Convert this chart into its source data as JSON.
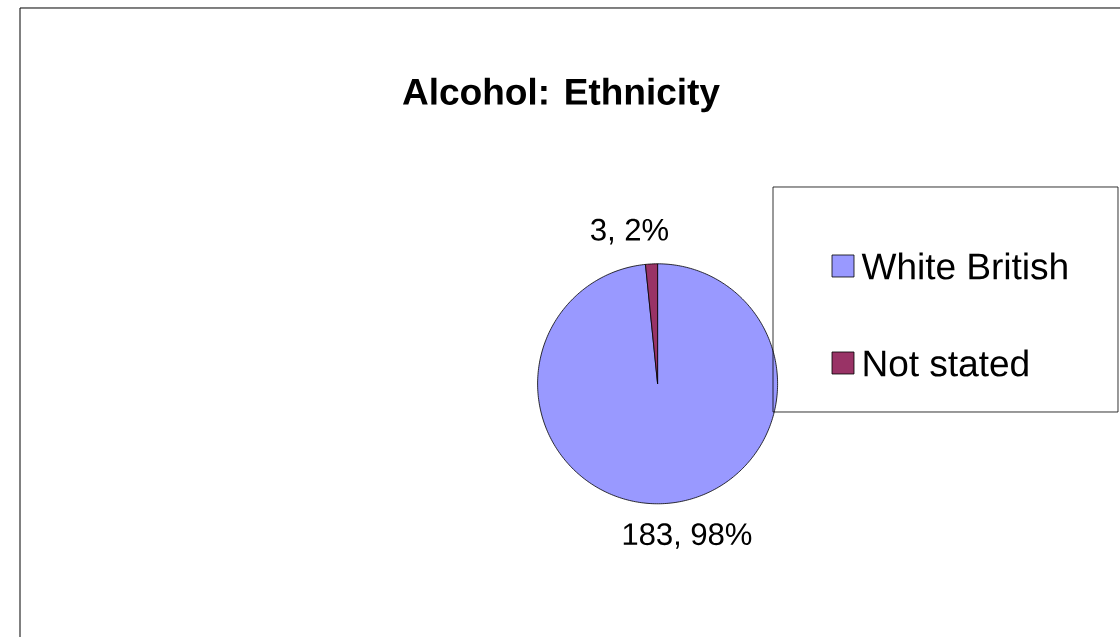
{
  "chart_data": {
    "type": "pie",
    "title": "Alcohol: Ethnicity",
    "categories": [
      "White British",
      "Not stated"
    ],
    "values": [
      183,
      3
    ],
    "colors": [
      "#9999ff",
      "#993366"
    ],
    "value_labels": [
      "183, 98%",
      "3, 2%"
    ],
    "legend": "right"
  }
}
